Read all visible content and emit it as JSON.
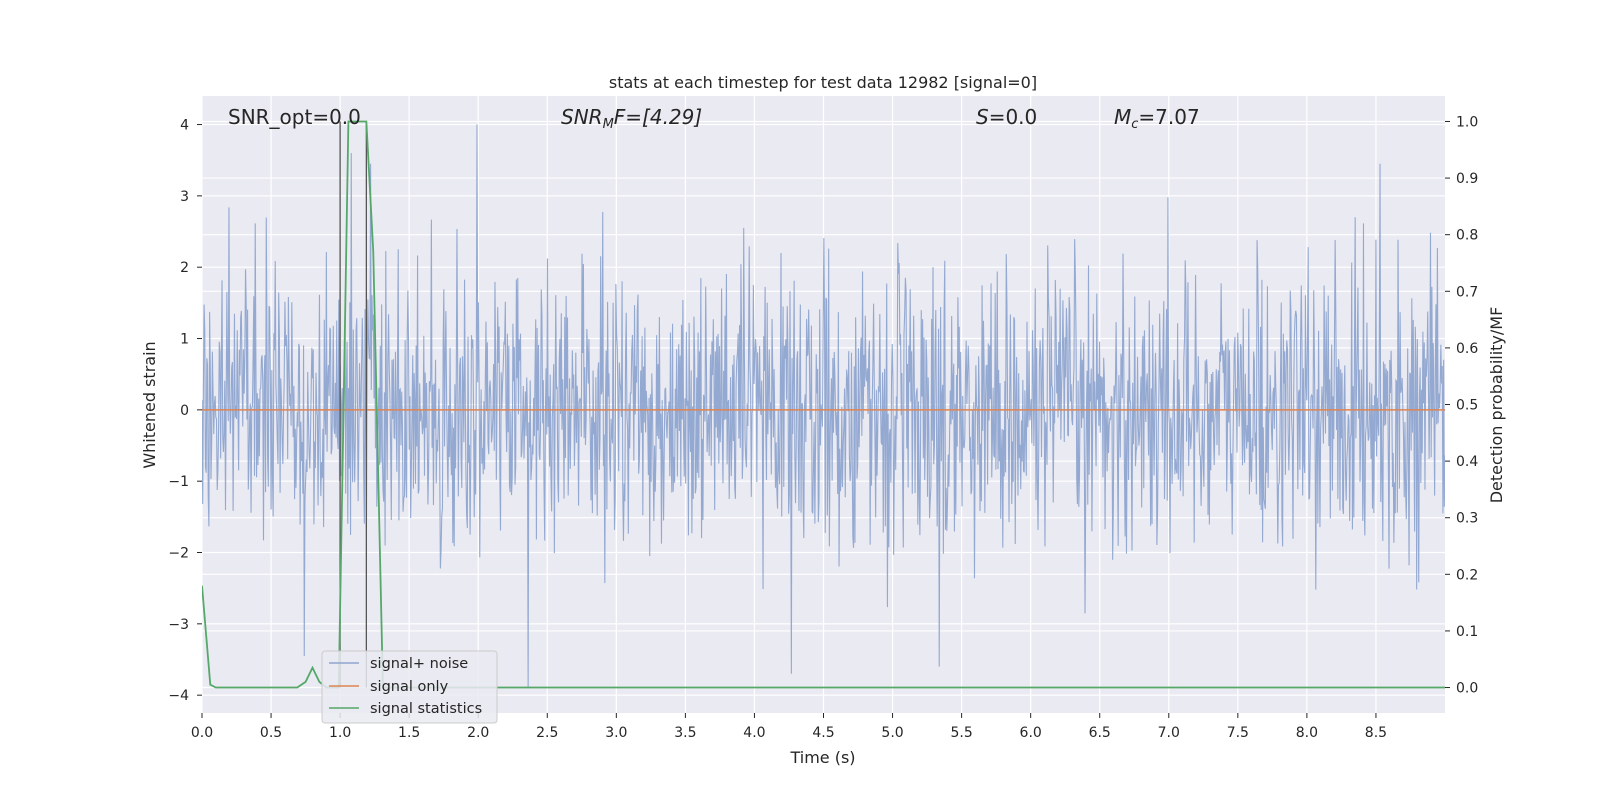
{
  "chart_data": {
    "type": "line",
    "title": "stats at each timestep for test data 12982 [signal=0]",
    "xlabel": "Time (s)",
    "ylabel_left": "Whitened strain",
    "ylabel_right": "Detection probability/MF",
    "xlim": [
      0,
      9
    ],
    "ylim_left": [
      -4.25,
      4.4
    ],
    "ylim_right": [
      -0.045,
      1.045
    ],
    "xticks": [
      "0.0",
      "0.5",
      "1.0",
      "1.5",
      "2.0",
      "2.5",
      "3.0",
      "3.5",
      "4.0",
      "4.5",
      "5.0",
      "5.5",
      "6.0",
      "6.5",
      "7.0",
      "7.5",
      "8.0",
      "8.5"
    ],
    "yticks_left": [
      "4",
      "3",
      "2",
      "1",
      "0",
      "−1",
      "−2",
      "−3",
      "−4"
    ],
    "yticks_right": [
      "1.0",
      "0.9",
      "0.8",
      "0.7",
      "0.6",
      "0.5",
      "0.4",
      "0.3",
      "0.2",
      "0.1",
      "0.0"
    ],
    "grid": true,
    "legend": {
      "placement": "lower-left",
      "entries": [
        "signal+ noise",
        "signal only",
        "signal statistics"
      ]
    },
    "annotations": {
      "snr_opt": "SNR_opt=0.0",
      "snr_mf_main": "SNR",
      "snr_mf_sub": "M",
      "snr_mf_rest": "F=[4.29]",
      "s_main": "S",
      "s_rest": "=0.0",
      "mc_main": "M",
      "mc_sub": "c",
      "mc_rest": "=7.07"
    },
    "vlines_x": [
      1.0,
      1.19
    ],
    "series": [
      {
        "name": "signal+ noise",
        "color": "#8fa5cf",
        "kind": "noise",
        "sample_count": 1800,
        "approx_std": 0.95,
        "notable_peaks": [
          {
            "x": 1.08,
            "y": 3.6
          },
          {
            "x": 1.22,
            "y": 3.45
          },
          {
            "x": 1.99,
            "y": 4.0
          },
          {
            "x": 2.36,
            "y": -3.9
          },
          {
            "x": 5.34,
            "y": -3.6
          },
          {
            "x": 8.53,
            "y": 3.45
          },
          {
            "x": 0.74,
            "y": -3.45
          }
        ]
      },
      {
        "name": "signal only",
        "color": "#dd8452",
        "x": [
          0,
          9
        ],
        "y": [
          0,
          0
        ]
      },
      {
        "name": "signal statistics",
        "color": "#55a868",
        "axis": "right",
        "x": [
          0.0,
          0.06,
          0.1,
          0.3,
          0.5,
          0.69,
          0.75,
          0.8,
          0.85,
          0.9,
          0.95,
          0.99,
          1.02,
          1.06,
          1.19,
          1.24,
          1.31,
          1.4,
          2.0,
          3.0,
          4.0,
          5.0,
          6.0,
          7.0,
          8.0,
          9.0
        ],
        "y": [
          0.18,
          0.005,
          0.0,
          0.0,
          0.0,
          0.0,
          0.01,
          0.035,
          0.01,
          0.0,
          0.0,
          0.0,
          0.42,
          1.0,
          1.0,
          0.77,
          0.0,
          0.0,
          0.0,
          0.0,
          0.0,
          0.0,
          0.0,
          0.0,
          0.0,
          0.0
        ]
      }
    ]
  }
}
